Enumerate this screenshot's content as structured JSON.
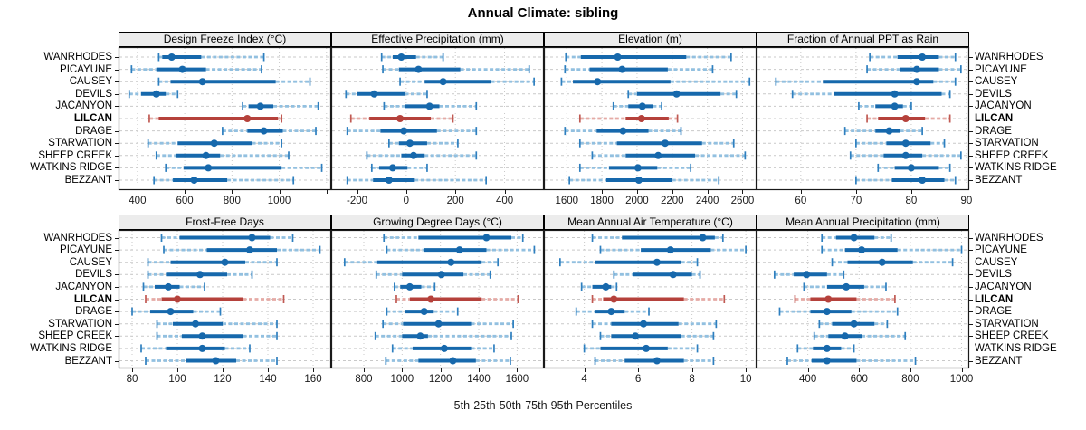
{
  "title": "Annual Climate: sibling",
  "caption": "5th-25th-50th-75th-95th Percentiles",
  "sites": [
    "WANRHODES",
    "PICAYUNE",
    "CAUSEY",
    "DEVILS",
    "JACANYON",
    "LILCAN",
    "DRAGE",
    "STARVATION",
    "SHEEP CREEK",
    "WATKINS RIDGE",
    "BEZZANT"
  ],
  "highlight_site": "LILCAN",
  "percentiles": [
    "5th",
    "25th",
    "50th",
    "75th",
    "95th"
  ],
  "colors": {
    "normal_dark": "#1668ac",
    "normal_light": "#92c0e0",
    "normal_cap": "#2e7fbf",
    "highlight_dark": "#b5413b",
    "highlight_light": "#e5aaa5",
    "highlight_cap": "#c05a53",
    "gridline": "#c9c9c9",
    "strip_bg": "#ececec",
    "border": "#1a1a1a",
    "text": "#000000"
  },
  "chart_data": [
    {
      "type": "dotplot-interval",
      "title": "Design Freeze Index (°C)",
      "grid_row": "top",
      "xlim": [
        320,
        1220
      ],
      "ticks": [
        400,
        600,
        800,
        1000
      ],
      "unlabeled_ticks": [
        1200
      ],
      "series": [
        {
          "site": "WANRHODES",
          "p": [
            490,
            505,
            545,
            670,
            935
          ]
        },
        {
          "site": "PICAYUNE",
          "p": [
            375,
            480,
            590,
            690,
            925
          ]
        },
        {
          "site": "CAUSEY",
          "p": [
            490,
            540,
            675,
            985,
            1130
          ]
        },
        {
          "site": "DEVILS",
          "p": [
            365,
            415,
            480,
            520,
            570
          ]
        },
        {
          "site": "JACANYON",
          "p": [
            845,
            870,
            920,
            975,
            1165
          ]
        },
        {
          "site": "LILCAN",
          "p": [
            450,
            490,
            865,
            995,
            1010
          ]
        },
        {
          "site": "DRAGE",
          "p": [
            760,
            865,
            935,
            1015,
            1155
          ]
        },
        {
          "site": "STARVATION",
          "p": [
            445,
            570,
            725,
            885,
            1010
          ]
        },
        {
          "site": "SHEEP CREEK",
          "p": [
            480,
            565,
            690,
            750,
            1040
          ]
        },
        {
          "site": "WATKINS RIDGE",
          "p": [
            520,
            595,
            700,
            1010,
            1180
          ]
        },
        {
          "site": "BEZZANT",
          "p": [
            470,
            550,
            640,
            780,
            1060
          ]
        }
      ]
    },
    {
      "type": "dotplot-interval",
      "title": "Effective Precipitation (mm)",
      "grid_row": "top",
      "xlim": [
        -305,
        560
      ],
      "ticks": [
        -200,
        0,
        200,
        400
      ],
      "unlabeled_ticks": [],
      "series": [
        {
          "site": "WANRHODES",
          "p": [
            -100,
            -55,
            -20,
            40,
            150
          ]
        },
        {
          "site": "PICAYUNE",
          "p": [
            -95,
            -30,
            50,
            220,
            500
          ]
        },
        {
          "site": "CAUSEY",
          "p": [
            -25,
            75,
            150,
            345,
            520
          ]
        },
        {
          "site": "DEVILS",
          "p": [
            -245,
            -200,
            -130,
            -5,
            85
          ]
        },
        {
          "site": "JACANYON",
          "p": [
            -90,
            -5,
            95,
            135,
            285
          ]
        },
        {
          "site": "LILCAN",
          "p": [
            -225,
            -150,
            -25,
            100,
            190
          ]
        },
        {
          "site": "DRAGE",
          "p": [
            -240,
            -105,
            -10,
            125,
            285
          ]
        },
        {
          "site": "STARVATION",
          "p": [
            -70,
            -30,
            15,
            85,
            210
          ]
        },
        {
          "site": "SHEEP CREEK",
          "p": [
            -160,
            -20,
            30,
            75,
            285
          ]
        },
        {
          "site": "WATKINS RIDGE",
          "p": [
            -140,
            -110,
            -55,
            5,
            85
          ]
        },
        {
          "site": "BEZZANT",
          "p": [
            -240,
            -135,
            -70,
            35,
            325
          ]
        }
      ]
    },
    {
      "type": "dotplot-interval",
      "title": "Elevation (m)",
      "grid_row": "top",
      "xlim": [
        1470,
        2680
      ],
      "ticks": [
        1600,
        1800,
        2000,
        2200,
        2400,
        2600
      ],
      "unlabeled_ticks": [],
      "series": [
        {
          "site": "WANRHODES",
          "p": [
            1595,
            1680,
            1890,
            2280,
            2535
          ]
        },
        {
          "site": "PICAYUNE",
          "p": [
            1590,
            1730,
            1915,
            2175,
            2430
          ]
        },
        {
          "site": "CAUSEY",
          "p": [
            1570,
            1635,
            1775,
            2190,
            2640
          ]
        },
        {
          "site": "DEVILS",
          "p": [
            1950,
            2000,
            2225,
            2475,
            2565
          ]
        },
        {
          "site": "JACANYON",
          "p": [
            1865,
            1950,
            2030,
            2090,
            2140
          ]
        },
        {
          "site": "LILCAN",
          "p": [
            1675,
            1935,
            2025,
            2180,
            2230
          ]
        },
        {
          "site": "DRAGE",
          "p": [
            1590,
            1770,
            1920,
            2065,
            2250
          ]
        },
        {
          "site": "STARVATION",
          "p": [
            1675,
            1885,
            2160,
            2370,
            2550
          ]
        },
        {
          "site": "SHEEP CREEK",
          "p": [
            1745,
            1935,
            2120,
            2330,
            2615
          ]
        },
        {
          "site": "WATKINS RIDGE",
          "p": [
            1675,
            1840,
            2005,
            2115,
            2305
          ]
        },
        {
          "site": "BEZZANT",
          "p": [
            1615,
            1825,
            2010,
            2200,
            2465
          ]
        }
      ]
    },
    {
      "type": "dotplot-interval",
      "title": "Fraction of Annual PPT as Rain",
      "grid_row": "top",
      "xlim": [
        52,
        90.5
      ],
      "ticks": [
        60,
        70,
        80,
        90
      ],
      "unlabeled_ticks": [],
      "series": [
        {
          "site": "WANRHODES",
          "p": [
            72.5,
            77.5,
            82,
            85,
            88
          ]
        },
        {
          "site": "PICAYUNE",
          "p": [
            72,
            78,
            81,
            85,
            89
          ]
        },
        {
          "site": "CAUSEY",
          "p": [
            55.5,
            64,
            81,
            84,
            88
          ]
        },
        {
          "site": "DEVILS",
          "p": [
            58.5,
            66,
            77,
            85.5,
            87
          ]
        },
        {
          "site": "JACANYON",
          "p": [
            70.5,
            73.5,
            77,
            78.5,
            80
          ]
        },
        {
          "site": "LILCAN",
          "p": [
            72,
            74,
            79,
            82.5,
            87
          ]
        },
        {
          "site": "DRAGE",
          "p": [
            68,
            73.5,
            76,
            78,
            82
          ]
        },
        {
          "site": "STARVATION",
          "p": [
            70,
            75.5,
            79,
            83.5,
            86
          ]
        },
        {
          "site": "SHEEP CREEK",
          "p": [
            69,
            75,
            79,
            82,
            89
          ]
        },
        {
          "site": "WATKINS RIDGE",
          "p": [
            74,
            77,
            80,
            85,
            87
          ]
        },
        {
          "site": "BEZZANT",
          "p": [
            70,
            76.5,
            82,
            86,
            88
          ]
        }
      ]
    },
    {
      "type": "dotplot-interval",
      "title": "Frost-Free Days",
      "grid_row": "bottom",
      "xlim": [
        74,
        168
      ],
      "ticks": [
        80,
        100,
        120,
        140,
        160
      ],
      "unlabeled_ticks": [],
      "series": [
        {
          "site": "WANRHODES",
          "p": [
            93,
            101,
            133,
            141,
            151
          ]
        },
        {
          "site": "PICAYUNE",
          "p": [
            94,
            113,
            132,
            144,
            163
          ]
        },
        {
          "site": "CAUSEY",
          "p": [
            87,
            97,
            121,
            130,
            144
          ]
        },
        {
          "site": "DEVILS",
          "p": [
            87,
            95,
            110,
            122,
            133
          ]
        },
        {
          "site": "JACANYON",
          "p": [
            85,
            90,
            96,
            101,
            112
          ]
        },
        {
          "site": "LILCAN",
          "p": [
            86,
            93,
            100,
            129,
            147
          ]
        },
        {
          "site": "DRAGE",
          "p": [
            80,
            88,
            97,
            107,
            119
          ]
        },
        {
          "site": "STARVATION",
          "p": [
            91,
            98,
            108,
            120,
            144
          ]
        },
        {
          "site": "SHEEP CREEK",
          "p": [
            91,
            102,
            111,
            129,
            144
          ]
        },
        {
          "site": "WATKINS RIDGE",
          "p": [
            84,
            95,
            111,
            121,
            132
          ]
        },
        {
          "site": "BEZZANT",
          "p": [
            86,
            104,
            117,
            126,
            144
          ]
        }
      ]
    },
    {
      "type": "dotplot-interval",
      "title": "Growing Degree Days (°C)",
      "grid_row": "bottom",
      "xlim": [
        630,
        1740
      ],
      "ticks": [
        800,
        1000,
        1200,
        1400,
        1600
      ],
      "unlabeled_ticks": [],
      "series": [
        {
          "site": "WANRHODES",
          "p": [
            905,
            1085,
            1440,
            1570,
            1630
          ]
        },
        {
          "site": "PICAYUNE",
          "p": [
            920,
            1115,
            1300,
            1440,
            1690
          ]
        },
        {
          "site": "CAUSEY",
          "p": [
            700,
            870,
            1255,
            1415,
            1500
          ]
        },
        {
          "site": "DEVILS",
          "p": [
            865,
            1000,
            1205,
            1320,
            1460
          ]
        },
        {
          "site": "JACANYON",
          "p": [
            960,
            990,
            1040,
            1100,
            1170
          ]
        },
        {
          "site": "LILCAN",
          "p": [
            970,
            1040,
            1150,
            1415,
            1605
          ]
        },
        {
          "site": "DRAGE",
          "p": [
            920,
            1015,
            1115,
            1165,
            1290
          ]
        },
        {
          "site": "STARVATION",
          "p": [
            900,
            1005,
            1190,
            1360,
            1580
          ]
        },
        {
          "site": "SHEEP CREEK",
          "p": [
            860,
            1000,
            1095,
            1135,
            1570
          ]
        },
        {
          "site": "WATKINS RIDGE",
          "p": [
            950,
            1055,
            1220,
            1360,
            1480
          ]
        },
        {
          "site": "BEZZANT",
          "p": [
            915,
            1085,
            1265,
            1385,
            1565
          ]
        }
      ]
    },
    {
      "type": "dotplot-interval",
      "title": "Mean Annual Air Temperature (°C)",
      "grid_row": "bottom",
      "xlim": [
        2.5,
        10.4
      ],
      "ticks": [
        4,
        6,
        8,
        10
      ],
      "unlabeled_ticks": [],
      "series": [
        {
          "site": "WANRHODES",
          "p": [
            4.3,
            5.4,
            8.4,
            8.85,
            9.15
          ]
        },
        {
          "site": "PICAYUNE",
          "p": [
            4.6,
            6.1,
            7.2,
            8.7,
            10.0
          ]
        },
        {
          "site": "CAUSEY",
          "p": [
            3.1,
            4.4,
            6.7,
            7.6,
            8.2
          ]
        },
        {
          "site": "DEVILS",
          "p": [
            5.1,
            5.8,
            7.3,
            8.0,
            8.3
          ]
        },
        {
          "site": "JACANYON",
          "p": [
            3.9,
            4.3,
            4.8,
            5.0,
            5.2
          ]
        },
        {
          "site": "LILCAN",
          "p": [
            4.3,
            4.7,
            5.1,
            7.7,
            9.2
          ]
        },
        {
          "site": "DRAGE",
          "p": [
            3.7,
            4.4,
            5.0,
            5.5,
            6.4
          ]
        },
        {
          "site": "STARVATION",
          "p": [
            4.3,
            5.0,
            6.2,
            7.5,
            8.9
          ]
        },
        {
          "site": "SHEEP CREEK",
          "p": [
            4.6,
            5.0,
            5.9,
            7.6,
            8.8
          ]
        },
        {
          "site": "WATKINS RIDGE",
          "p": [
            4.0,
            4.6,
            6.3,
            7.1,
            8.2
          ]
        },
        {
          "site": "BEZZANT",
          "p": [
            4.4,
            5.5,
            6.7,
            7.7,
            8.8
          ]
        }
      ]
    },
    {
      "type": "dotplot-interval",
      "title": "Mean Annual Precipitation (mm)",
      "grid_row": "bottom",
      "xlim": [
        200,
        1030
      ],
      "ticks": [
        400,
        600,
        800,
        1000
      ],
      "unlabeled_ticks": [],
      "series": [
        {
          "site": "WANRHODES",
          "p": [
            455,
            510,
            580,
            660,
            725
          ]
        },
        {
          "site": "PICAYUNE",
          "p": [
            455,
            545,
            610,
            750,
            1000
          ]
        },
        {
          "site": "CAUSEY",
          "p": [
            495,
            555,
            690,
            810,
            965
          ]
        },
        {
          "site": "DEVILS",
          "p": [
            270,
            345,
            395,
            475,
            540
          ]
        },
        {
          "site": "JACANYON",
          "p": [
            385,
            475,
            550,
            620,
            705
          ]
        },
        {
          "site": "LILCAN",
          "p": [
            350,
            410,
            480,
            590,
            740
          ]
        },
        {
          "site": "DRAGE",
          "p": [
            290,
            410,
            475,
            570,
            750
          ]
        },
        {
          "site": "STARVATION",
          "p": [
            445,
            495,
            580,
            660,
            710
          ]
        },
        {
          "site": "SHEEP CREEK",
          "p": [
            425,
            480,
            545,
            610,
            780
          ]
        },
        {
          "site": "WATKINS RIDGE",
          "p": [
            360,
            420,
            475,
            530,
            580
          ]
        },
        {
          "site": "BEZZANT",
          "p": [
            320,
            415,
            475,
            590,
            820
          ]
        }
      ]
    }
  ]
}
